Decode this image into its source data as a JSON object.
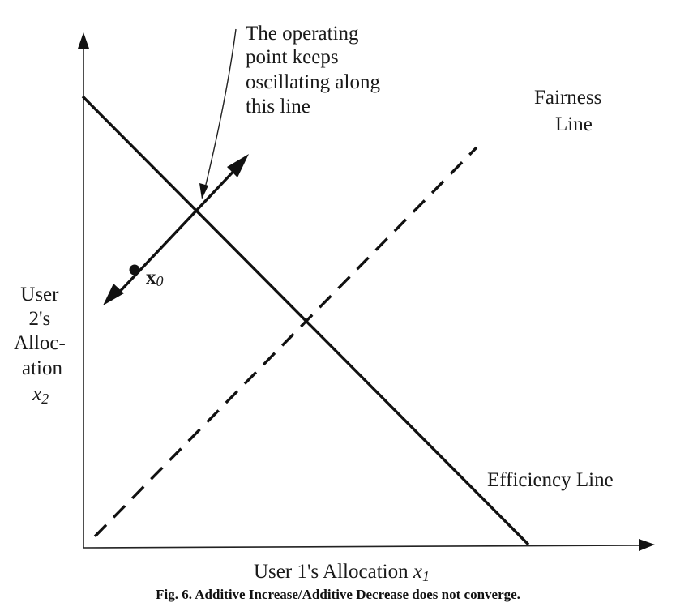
{
  "annotation": {
    "lines": [
      "The operating",
      "point keeps",
      "oscillating along",
      "this line"
    ]
  },
  "fairness_label": [
    "Fairness",
    "Line"
  ],
  "efficiency_label": "Efficiency Line",
  "point_label": {
    "base": "x",
    "sub": "0"
  },
  "y_axis_label": {
    "lines": [
      "User",
      "2's",
      "Alloc-",
      "ation"
    ],
    "var": "x",
    "sub": "2"
  },
  "x_axis_label": {
    "text": "User 1's Allocation ",
    "var": "x",
    "sub": "1"
  },
  "caption": "Fig. 6. Additive Increase/Additive Decrease does not converge."
}
